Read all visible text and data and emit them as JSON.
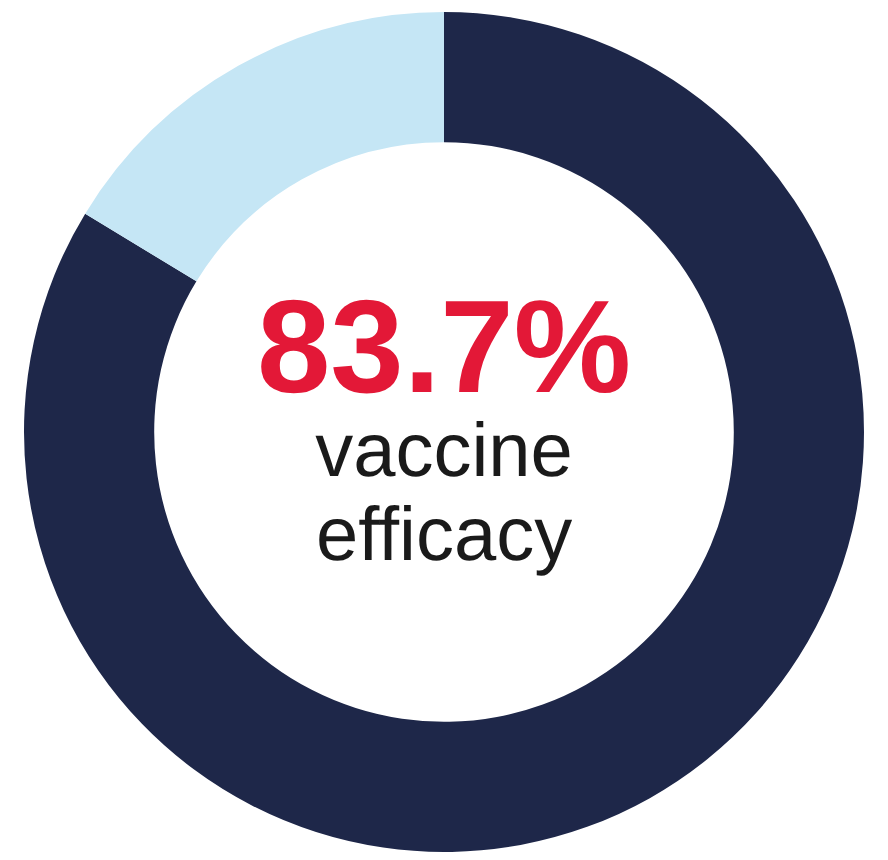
{
  "chart_data": {
    "type": "donut",
    "categories": [
      null,
      null
    ],
    "values": [
      83.7,
      16.3
    ],
    "colors": [
      "#1e2749",
      "#c5e6f5"
    ],
    "annotations": [
      "83.7%",
      "vaccine efficacy"
    ],
    "legend": false
  }
}
